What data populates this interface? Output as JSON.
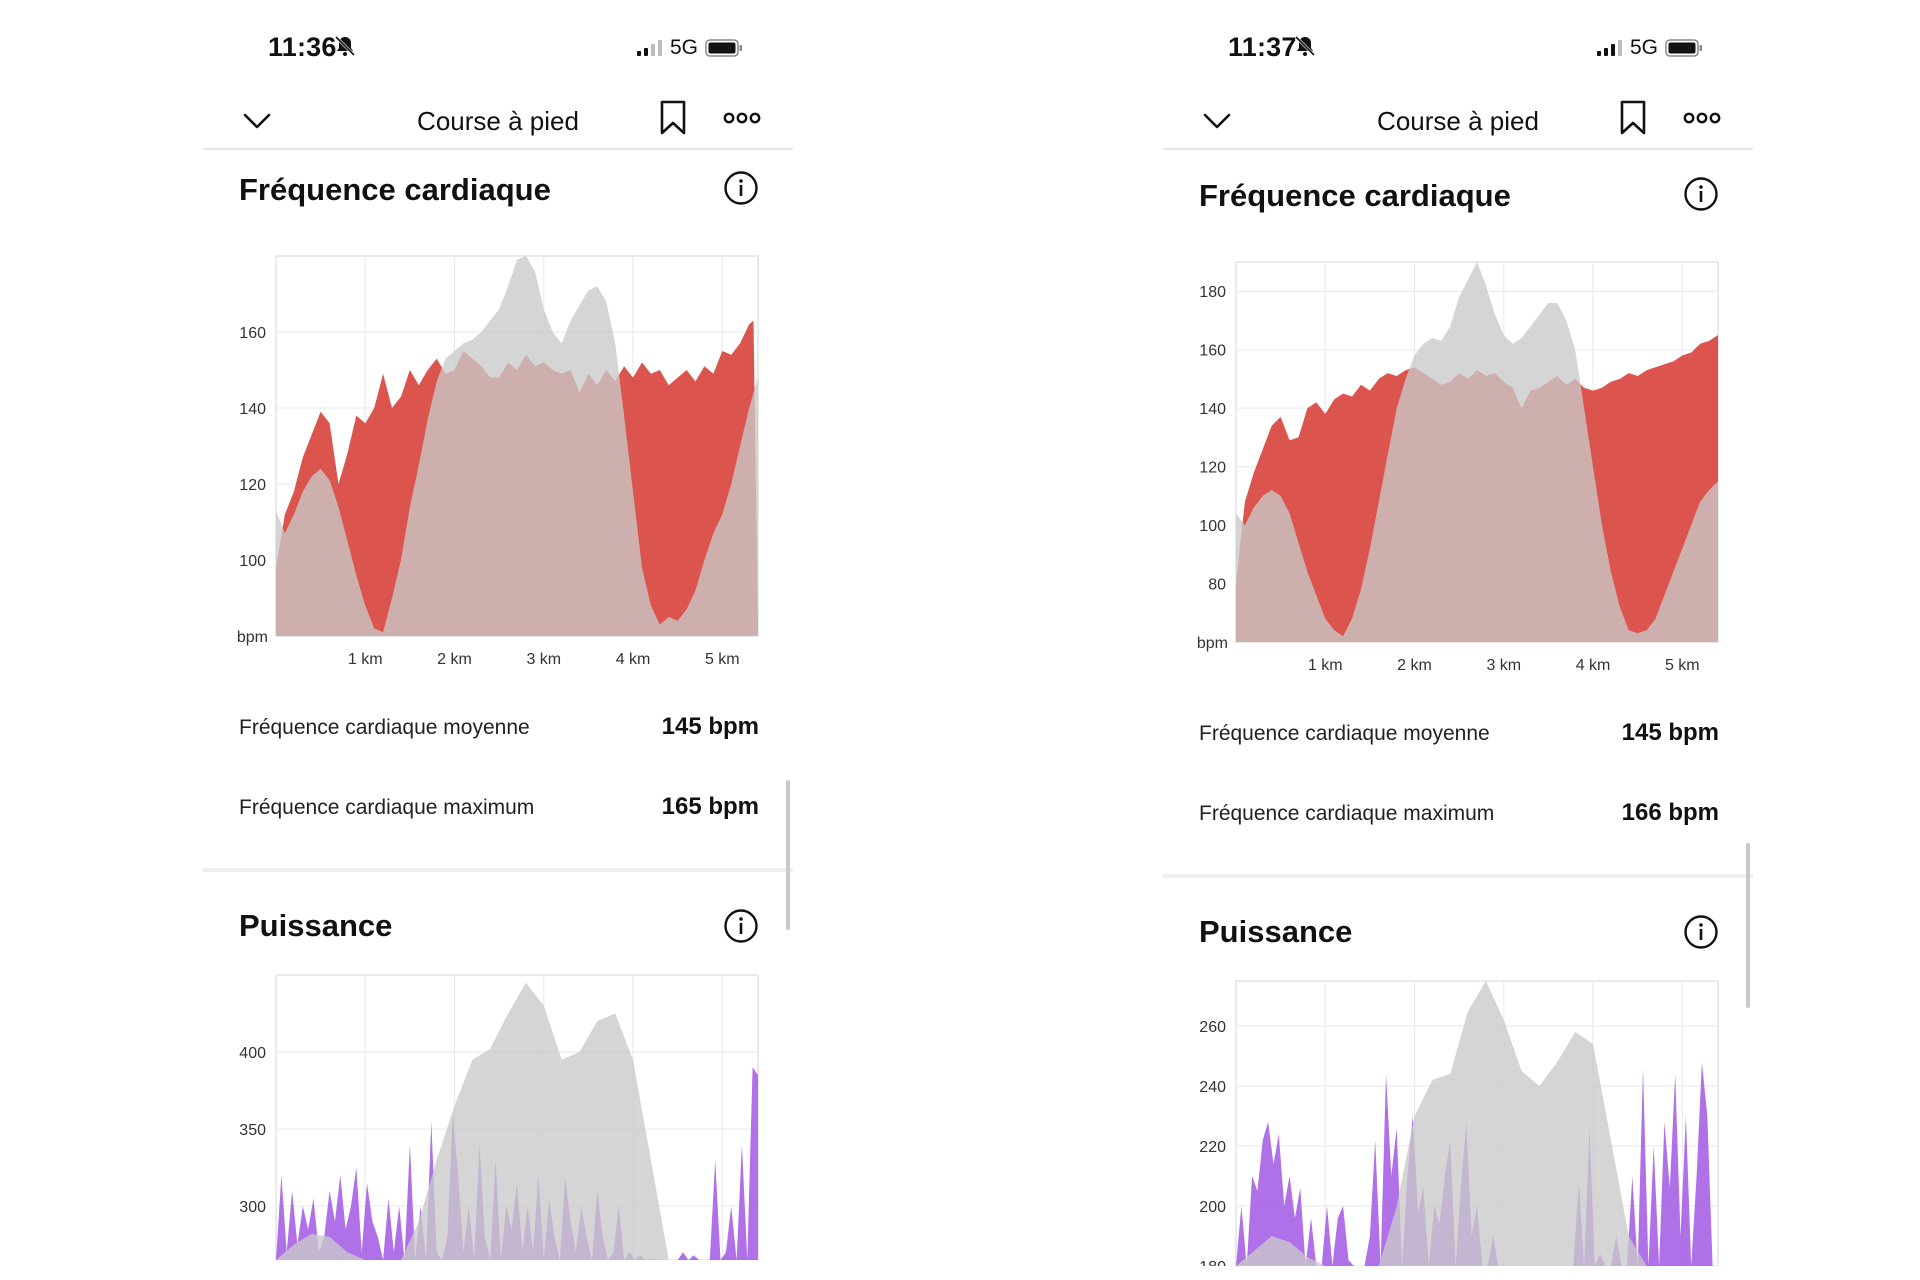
{
  "phones": [
    {
      "status": {
        "time": "11:36",
        "network": "5G"
      },
      "header": {
        "title": "Course à pied"
      },
      "heart": {
        "title": "Fréquence cardiaque",
        "stats": [
          {
            "label": "Fréquence cardiaque moyenne",
            "value": "145 bpm"
          },
          {
            "label": "Fréquence cardiaque maximum",
            "value": "165 bpm"
          }
        ]
      },
      "power": {
        "title": "Puissance"
      }
    },
    {
      "status": {
        "time": "11:37",
        "network": "5G"
      },
      "header": {
        "title": "Course à pied"
      },
      "heart": {
        "title": "Fréquence cardiaque",
        "stats": [
          {
            "label": "Fréquence cardiaque moyenne",
            "value": "145 bpm"
          },
          {
            "label": "Fréquence cardiaque maximum",
            "value": "166 bpm"
          }
        ]
      },
      "power": {
        "title": "Puissance"
      }
    }
  ],
  "colors": {
    "heart": "#d8413b",
    "power": "#a760e6",
    "elevation": "#c9c9c9"
  },
  "chart_data": [
    {
      "type": "area",
      "chart": "left-heart",
      "x_unit": "km",
      "xlim": [
        0,
        5.4
      ],
      "ylim": [
        80,
        180
      ],
      "y_ticks": [
        100,
        120,
        140,
        160
      ],
      "y_unit_label": "bpm",
      "x_ticks": [
        {
          "v": 1,
          "label": "1 km"
        },
        {
          "v": 2,
          "label": "2 km"
        },
        {
          "v": 3,
          "label": "3 km"
        },
        {
          "v": 4,
          "label": "4 km"
        },
        {
          "v": 5,
          "label": "5 km"
        }
      ],
      "series": [
        {
          "kind": "heart",
          "x": [
            0,
            0.1,
            0.2,
            0.3,
            0.4,
            0.5,
            0.6,
            0.7,
            0.8,
            0.9,
            1.0,
            1.1,
            1.2,
            1.3,
            1.4,
            1.5,
            1.6,
            1.7,
            1.8,
            1.9,
            2.0,
            2.1,
            2.2,
            2.3,
            2.4,
            2.5,
            2.6,
            2.7,
            2.8,
            2.9,
            3.0,
            3.1,
            3.2,
            3.3,
            3.4,
            3.5,
            3.6,
            3.7,
            3.8,
            3.9,
            4.0,
            4.1,
            4.2,
            4.3,
            4.4,
            4.5,
            4.6,
            4.7,
            4.8,
            4.9,
            5.0,
            5.1,
            5.2,
            5.3,
            5.35,
            5.4
          ],
          "y": [
            98,
            112,
            118,
            127,
            133,
            139,
            136,
            120,
            128,
            138,
            136,
            140,
            149,
            140,
            143,
            150,
            146,
            150,
            153,
            149,
            150,
            155,
            153,
            151,
            148,
            148,
            152,
            150,
            154,
            151,
            152,
            150,
            149,
            150,
            144,
            149,
            146,
            150,
            147,
            151,
            148,
            152,
            149,
            150,
            146,
            148,
            150,
            147,
            151,
            149,
            155,
            154,
            157,
            162,
            163,
            82
          ]
        },
        {
          "kind": "elevation",
          "x": [
            0,
            0.1,
            0.2,
            0.3,
            0.4,
            0.5,
            0.6,
            0.7,
            0.8,
            0.9,
            1.0,
            1.1,
            1.2,
            1.3,
            1.4,
            1.5,
            1.6,
            1.7,
            1.8,
            1.9,
            2.0,
            2.1,
            2.2,
            2.3,
            2.4,
            2.5,
            2.6,
            2.7,
            2.8,
            2.9,
            3.0,
            3.1,
            3.2,
            3.3,
            3.4,
            3.5,
            3.6,
            3.7,
            3.8,
            3.9,
            4.0,
            4.1,
            4.2,
            4.3,
            4.4,
            4.5,
            4.6,
            4.7,
            4.8,
            4.9,
            5.0,
            5.1,
            5.2,
            5.3,
            5.4
          ],
          "y": [
            113,
            107,
            112,
            118,
            122,
            124,
            121,
            114,
            105,
            96,
            88,
            82,
            81,
            90,
            100,
            114,
            125,
            137,
            147,
            153,
            155,
            157,
            158,
            160,
            163,
            166,
            172,
            179,
            180,
            176,
            166,
            160,
            157,
            163,
            167,
            171,
            172,
            168,
            157,
            138,
            118,
            98,
            88,
            83,
            85,
            84,
            87,
            92,
            100,
            107,
            112,
            120,
            130,
            140,
            148
          ]
        }
      ]
    },
    {
      "type": "area",
      "chart": "left-power",
      "x_unit": "km",
      "xlim": [
        0,
        5.4
      ],
      "ylim": [
        265,
        450
      ],
      "y_ticks": [
        300,
        350,
        400
      ],
      "series": [
        {
          "kind": "power",
          "x": [
            0,
            0.06,
            0.12,
            0.18,
            0.24,
            0.3,
            0.36,
            0.42,
            0.48,
            0.54,
            0.6,
            0.66,
            0.72,
            0.78,
            0.84,
            0.9,
            0.96,
            1.02,
            1.08,
            1.14,
            1.2,
            1.26,
            1.32,
            1.38,
            1.44,
            1.5,
            1.56,
            1.62,
            1.68,
            1.74,
            1.8,
            1.86,
            1.92,
            1.98,
            2.04,
            2.1,
            2.16,
            2.22,
            2.28,
            2.34,
            2.4,
            2.46,
            2.52,
            2.58,
            2.64,
            2.7,
            2.76,
            2.82,
            2.88,
            2.94,
            3.0,
            3.06,
            3.12,
            3.18,
            3.24,
            3.3,
            3.36,
            3.42,
            3.48,
            3.54,
            3.6,
            3.66,
            3.72,
            3.78,
            3.84,
            3.9,
            3.96,
            4.02,
            4.08,
            4.14,
            4.2,
            4.26,
            4.32,
            4.38,
            4.44,
            4.5,
            4.56,
            4.62,
            4.68,
            4.74,
            4.8,
            4.86,
            4.92,
            4.98,
            5.04,
            5.1,
            5.16,
            5.22,
            5.28,
            5.34,
            5.4
          ],
          "y": [
            265,
            320,
            270,
            310,
            275,
            300,
            285,
            305,
            270,
            280,
            310,
            290,
            320,
            285,
            300,
            325,
            270,
            315,
            290,
            280,
            265,
            305,
            270,
            300,
            265,
            340,
            265,
            300,
            265,
            355,
            270,
            265,
            280,
            360,
            320,
            270,
            300,
            265,
            340,
            280,
            265,
            330,
            265,
            300,
            285,
            315,
            270,
            300,
            270,
            320,
            265,
            305,
            280,
            265,
            318,
            290,
            270,
            300,
            280,
            265,
            310,
            280,
            265,
            270,
            300,
            265,
            270,
            265,
            268,
            265,
            266,
            265,
            265,
            265,
            265,
            265,
            270,
            265,
            268,
            265,
            265,
            265,
            330,
            265,
            270,
            300,
            265,
            340,
            265,
            390,
            385
          ]
        },
        {
          "kind": "elevation",
          "x": [
            0,
            0.2,
            0.4,
            0.6,
            0.8,
            1.0,
            1.2,
            1.4,
            1.6,
            1.8,
            2.0,
            2.2,
            2.4,
            2.6,
            2.8,
            3.0,
            3.2,
            3.4,
            3.6,
            3.8,
            4.0,
            4.2,
            4.4,
            4.6,
            4.8,
            5.0,
            5.2,
            5.4
          ],
          "y": [
            265,
            275,
            282,
            280,
            270,
            265,
            265,
            265,
            290,
            330,
            365,
            395,
            402,
            425,
            445,
            430,
            395,
            400,
            420,
            425,
            395,
            330,
            265,
            265,
            265,
            265,
            265,
            265
          ]
        }
      ]
    },
    {
      "type": "area",
      "chart": "right-heart",
      "x_unit": "km",
      "xlim": [
        0,
        5.4
      ],
      "ylim": [
        60,
        190
      ],
      "y_ticks": [
        80,
        100,
        120,
        140,
        160,
        180
      ],
      "y_unit_label": "bpm",
      "x_ticks": [
        {
          "v": 1,
          "label": "1 km"
        },
        {
          "v": 2,
          "label": "2 km"
        },
        {
          "v": 3,
          "label": "3 km"
        },
        {
          "v": 4,
          "label": "4 km"
        },
        {
          "v": 5,
          "label": "5 km"
        }
      ],
      "series": [
        {
          "kind": "heart",
          "x": [
            0,
            0.1,
            0.2,
            0.3,
            0.4,
            0.5,
            0.6,
            0.7,
            0.8,
            0.9,
            1.0,
            1.1,
            1.2,
            1.3,
            1.4,
            1.5,
            1.6,
            1.7,
            1.8,
            1.9,
            2.0,
            2.1,
            2.2,
            2.3,
            2.4,
            2.5,
            2.6,
            2.7,
            2.8,
            2.9,
            3.0,
            3.1,
            3.2,
            3.3,
            3.4,
            3.5,
            3.6,
            3.7,
            3.8,
            3.9,
            4.0,
            4.1,
            4.2,
            4.3,
            4.4,
            4.5,
            4.6,
            4.7,
            4.8,
            4.9,
            5.0,
            5.1,
            5.2,
            5.3,
            5.4
          ],
          "y": [
            80,
            108,
            118,
            126,
            134,
            137,
            129,
            130,
            140,
            142,
            138,
            143,
            145,
            144,
            148,
            146,
            150,
            152,
            151,
            153,
            154,
            152,
            150,
            148,
            149,
            152,
            150,
            153,
            151,
            152,
            149,
            147,
            140,
            146,
            147,
            149,
            151,
            148,
            150,
            147,
            146,
            147,
            149,
            150,
            152,
            151,
            153,
            154,
            155,
            156,
            158,
            159,
            162,
            163,
            165
          ]
        },
        {
          "kind": "elevation",
          "x": [
            0,
            0.1,
            0.2,
            0.3,
            0.4,
            0.5,
            0.6,
            0.7,
            0.8,
            0.9,
            1.0,
            1.1,
            1.2,
            1.3,
            1.4,
            1.5,
            1.6,
            1.7,
            1.8,
            1.9,
            2.0,
            2.1,
            2.2,
            2.3,
            2.4,
            2.5,
            2.6,
            2.7,
            2.8,
            2.9,
            3.0,
            3.1,
            3.2,
            3.3,
            3.4,
            3.5,
            3.6,
            3.7,
            3.8,
            3.9,
            4.0,
            4.1,
            4.2,
            4.3,
            4.4,
            4.5,
            4.6,
            4.7,
            4.8,
            4.9,
            5.0,
            5.1,
            5.2,
            5.3,
            5.4
          ],
          "y": [
            104,
            100,
            106,
            110,
            112,
            110,
            104,
            94,
            84,
            76,
            68,
            64,
            62,
            68,
            78,
            92,
            108,
            124,
            140,
            150,
            158,
            162,
            164,
            163,
            168,
            178,
            184,
            190,
            182,
            172,
            165,
            162,
            164,
            168,
            172,
            176,
            176,
            170,
            160,
            140,
            120,
            100,
            84,
            72,
            64,
            63,
            64,
            68,
            76,
            84,
            92,
            100,
            108,
            112,
            115
          ]
        }
      ]
    },
    {
      "type": "area",
      "chart": "right-power",
      "x_unit": "km",
      "xlim": [
        0,
        5.4
      ],
      "ylim": [
        180,
        275
      ],
      "y_ticks": [
        180,
        200,
        220,
        240,
        260
      ],
      "series": [
        {
          "kind": "power",
          "x": [
            0,
            0.06,
            0.12,
            0.18,
            0.24,
            0.3,
            0.36,
            0.42,
            0.48,
            0.54,
            0.6,
            0.66,
            0.72,
            0.78,
            0.84,
            0.9,
            0.96,
            1.02,
            1.08,
            1.14,
            1.2,
            1.26,
            1.32,
            1.38,
            1.44,
            1.5,
            1.56,
            1.62,
            1.68,
            1.74,
            1.8,
            1.86,
            1.92,
            1.98,
            2.04,
            2.1,
            2.16,
            2.22,
            2.28,
            2.34,
            2.4,
            2.46,
            2.52,
            2.58,
            2.64,
            2.7,
            2.76,
            2.82,
            2.88,
            2.94,
            3.0,
            3.06,
            3.12,
            3.18,
            3.24,
            3.3,
            3.36,
            3.42,
            3.48,
            3.54,
            3.6,
            3.66,
            3.72,
            3.78,
            3.84,
            3.9,
            3.96,
            4.02,
            4.08,
            4.14,
            4.2,
            4.26,
            4.32,
            4.38,
            4.44,
            4.5,
            4.56,
            4.62,
            4.68,
            4.74,
            4.8,
            4.86,
            4.92,
            4.98,
            5.04,
            5.1,
            5.16,
            5.22,
            5.28,
            5.34,
            5.4
          ],
          "y": [
            180,
            200,
            180,
            210,
            205,
            222,
            228,
            214,
            224,
            200,
            210,
            196,
            206,
            180,
            196,
            180,
            180,
            200,
            180,
            196,
            200,
            182,
            180,
            180,
            180,
            190,
            222,
            180,
            244,
            210,
            226,
            180,
            210,
            230,
            198,
            206,
            180,
            200,
            194,
            210,
            222,
            180,
            206,
            228,
            190,
            200,
            180,
            180,
            190,
            180,
            180,
            180,
            180,
            180,
            180,
            180,
            180,
            180,
            180,
            180,
            180,
            180,
            180,
            180,
            208,
            180,
            226,
            180,
            184,
            180,
            180,
            190,
            180,
            180,
            210,
            180,
            246,
            180,
            220,
            180,
            228,
            206,
            244,
            190,
            230,
            180,
            210,
            248,
            230,
            180,
            180
          ]
        },
        {
          "kind": "elevation",
          "x": [
            0,
            0.2,
            0.4,
            0.6,
            0.8,
            1.0,
            1.2,
            1.4,
            1.6,
            1.8,
            2.0,
            2.2,
            2.4,
            2.6,
            2.8,
            3.0,
            3.2,
            3.4,
            3.6,
            3.8,
            4.0,
            4.2,
            4.4,
            4.6,
            4.8,
            5.0,
            5.2,
            5.4
          ],
          "y": [
            180,
            185,
            190,
            188,
            183,
            180,
            180,
            180,
            180,
            200,
            230,
            242,
            244,
            265,
            275,
            262,
            245,
            240,
            248,
            258,
            254,
            222,
            190,
            180,
            180,
            180,
            180,
            180
          ]
        }
      ]
    }
  ]
}
